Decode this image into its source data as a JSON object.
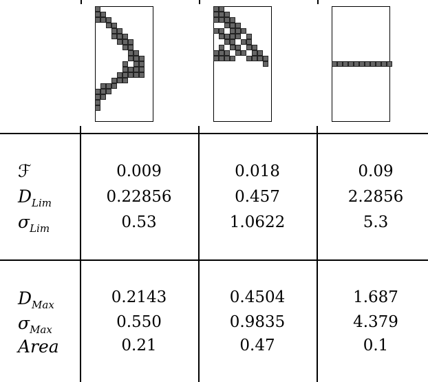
{
  "section1": {
    "labels": [
      "F",
      "D",
      "σ"
    ],
    "subscripts": [
      "",
      "Lim",
      "Lim"
    ],
    "columns": [
      [
        "0.009",
        "0.22856",
        "0.53"
      ],
      [
        "0.018",
        "0.457",
        "1.0622"
      ],
      [
        "0.09",
        "2.2856",
        "5.3"
      ]
    ]
  },
  "section2": {
    "labels": [
      "D",
      "σ",
      "Area"
    ],
    "subscripts": [
      "Max",
      "Max",
      ""
    ],
    "columns": [
      [
        "0.2143",
        "0.550",
        "0.21"
      ],
      [
        "0.4504",
        "0.9835",
        "0.47"
      ],
      [
        "1.687",
        "4.379",
        "0.1"
      ]
    ]
  }
}
